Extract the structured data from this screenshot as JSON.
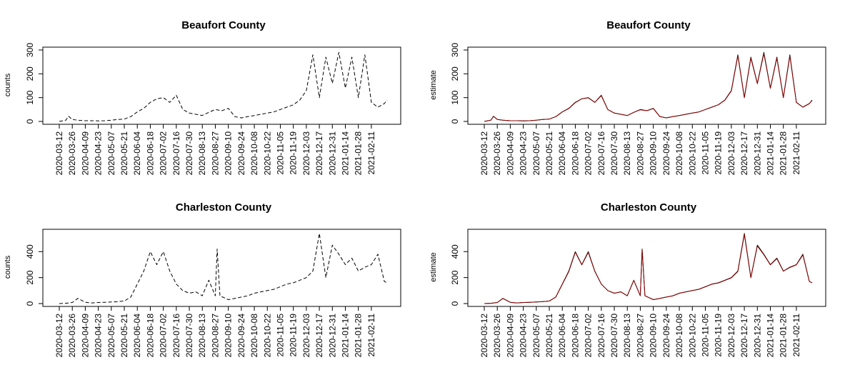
{
  "chart_data": [
    {
      "type": "line",
      "title": "Beaufort County",
      "xlabel": "",
      "ylabel": "counts",
      "ylim": [
        0,
        300
      ],
      "yticks": [
        0,
        100,
        200,
        300
      ],
      "xticks": [
        "2020-03-12",
        "2020-03-26",
        "2020-04-09",
        "2020-04-23",
        "2020-05-07",
        "2020-05-21",
        "2020-06-04",
        "2020-06-18",
        "2020-07-02",
        "2020-07-16",
        "2020-07-30",
        "2020-08-13",
        "2020-08-27",
        "2020-09-10",
        "2020-09-24",
        "2020-10-08",
        "2020-10-22",
        "2020-11-05",
        "2020-11-19",
        "2020-12-03",
        "2020-12-17",
        "2020-12-31",
        "2021-01-14",
        "2021-01-28",
        "2021-02-11"
      ],
      "series": [
        {
          "name": "counts",
          "color": "#000000",
          "dash": "dashed",
          "x": [
            0,
            7,
            10,
            14,
            20,
            28,
            35,
            42,
            49,
            56,
            63,
            70,
            77,
            84,
            91,
            98,
            105,
            112,
            119,
            126,
            133,
            140,
            147,
            154,
            161,
            168,
            175,
            182,
            189,
            196,
            203,
            210,
            217,
            224,
            231,
            238,
            245,
            252,
            259,
            266,
            273,
            280,
            287,
            294,
            301,
            308,
            315,
            322,
            329,
            336,
            343,
            350,
            353
          ],
          "y": [
            0,
            5,
            22,
            8,
            5,
            3,
            3,
            2,
            3,
            5,
            8,
            10,
            20,
            40,
            55,
            80,
            95,
            100,
            80,
            110,
            50,
            35,
            30,
            25,
            38,
            50,
            45,
            55,
            20,
            15,
            20,
            25,
            30,
            35,
            40,
            50,
            60,
            70,
            90,
            130,
            280,
            100,
            270,
            160,
            290,
            140,
            270,
            100,
            280,
            80,
            60,
            75,
            90
          ]
        }
      ]
    },
    {
      "type": "line",
      "title": "Beaufort County",
      "xlabel": "",
      "ylabel": "estimate",
      "ylim": [
        0,
        300
      ],
      "yticks": [
        0,
        100,
        200,
        300
      ],
      "xticks": [
        "2020-03-12",
        "2020-03-26",
        "2020-04-09",
        "2020-04-23",
        "2020-05-07",
        "2020-05-21",
        "2020-06-04",
        "2020-06-18",
        "2020-07-02",
        "2020-07-16",
        "2020-07-30",
        "2020-08-13",
        "2020-08-27",
        "2020-09-10",
        "2020-09-24",
        "2020-10-08",
        "2020-10-22",
        "2020-11-05",
        "2020-11-19",
        "2020-12-03",
        "2020-12-17",
        "2020-12-31",
        "2021-01-14",
        "2021-01-28",
        "2021-02-11"
      ],
      "series": [
        {
          "name": "counts",
          "color": "#000000",
          "dash": "solid",
          "x": [
            0,
            7,
            10,
            14,
            20,
            28,
            35,
            42,
            49,
            56,
            63,
            70,
            77,
            84,
            91,
            98,
            105,
            112,
            119,
            126,
            133,
            140,
            147,
            154,
            161,
            168,
            175,
            182,
            189,
            196,
            203,
            210,
            217,
            224,
            231,
            238,
            245,
            252,
            259,
            266,
            273,
            280,
            287,
            294,
            301,
            308,
            315,
            322,
            329,
            336,
            343,
            350,
            353
          ],
          "y": [
            0,
            5,
            22,
            8,
            5,
            3,
            3,
            2,
            3,
            5,
            8,
            10,
            20,
            40,
            55,
            80,
            95,
            100,
            80,
            110,
            50,
            35,
            30,
            25,
            38,
            50,
            45,
            55,
            20,
            15,
            20,
            25,
            30,
            35,
            40,
            50,
            60,
            70,
            90,
            130,
            280,
            100,
            270,
            160,
            290,
            140,
            270,
            100,
            280,
            80,
            60,
            75,
            90
          ]
        },
        {
          "name": "estimate",
          "color": "#8b0000",
          "dash": "solid",
          "x": [
            0,
            7,
            10,
            14,
            20,
            28,
            35,
            42,
            49,
            56,
            63,
            70,
            77,
            84,
            91,
            98,
            105,
            112,
            119,
            126,
            133,
            140,
            147,
            154,
            161,
            168,
            175,
            182,
            189,
            196,
            203,
            210,
            217,
            224,
            231,
            238,
            245,
            252,
            259,
            266,
            273,
            280,
            287,
            294,
            301,
            308,
            315,
            322,
            329,
            336,
            343,
            350,
            353
          ],
          "y": [
            0,
            5,
            21,
            8,
            5,
            3,
            3,
            2,
            3,
            5,
            8,
            10,
            20,
            40,
            54,
            79,
            95,
            99,
            80,
            108,
            50,
            35,
            30,
            25,
            38,
            49,
            45,
            54,
            20,
            15,
            20,
            25,
            30,
            35,
            40,
            50,
            60,
            70,
            89,
            128,
            276,
            100,
            266,
            158,
            285,
            139,
            266,
            100,
            275,
            80,
            60,
            75,
            88
          ]
        }
      ]
    },
    {
      "type": "line",
      "title": "Charleston County",
      "xlabel": "",
      "ylabel": "counts",
      "ylim": [
        0,
        550
      ],
      "yticks": [
        0,
        200,
        400
      ],
      "xticks": [
        "2020-03-12",
        "2020-03-26",
        "2020-04-09",
        "2020-04-23",
        "2020-05-07",
        "2020-05-21",
        "2020-06-04",
        "2020-06-18",
        "2020-07-02",
        "2020-07-16",
        "2020-07-30",
        "2020-08-13",
        "2020-08-27",
        "2020-09-10",
        "2020-09-24",
        "2020-10-08",
        "2020-10-22",
        "2020-11-05",
        "2020-11-19",
        "2020-12-03",
        "2020-12-17",
        "2020-12-31",
        "2021-01-14",
        "2021-01-28",
        "2021-02-11"
      ],
      "series": [
        {
          "name": "counts",
          "color": "#000000",
          "dash": "dashed",
          "x": [
            0,
            7,
            14,
            20,
            28,
            35,
            42,
            49,
            56,
            63,
            70,
            77,
            84,
            91,
            98,
            105,
            112,
            119,
            126,
            133,
            140,
            147,
            154,
            161,
            168,
            170,
            173,
            182,
            189,
            196,
            203,
            210,
            217,
            224,
            231,
            238,
            245,
            252,
            259,
            266,
            273,
            280,
            287,
            294,
            301,
            308,
            315,
            322,
            329,
            336,
            343,
            350,
            353
          ],
          "y": [
            0,
            2,
            8,
            40,
            10,
            5,
            8,
            10,
            12,
            15,
            20,
            50,
            150,
            250,
            400,
            300,
            400,
            250,
            150,
            100,
            80,
            90,
            60,
            180,
            60,
            420,
            60,
            30,
            40,
            50,
            60,
            80,
            90,
            100,
            110,
            130,
            150,
            160,
            180,
            200,
            250,
            540,
            200,
            450,
            380,
            300,
            350,
            250,
            280,
            300,
            380,
            170,
            160
          ]
        }
      ]
    },
    {
      "type": "line",
      "title": "Charleston County",
      "xlabel": "",
      "ylabel": "estimate",
      "ylim": [
        0,
        550
      ],
      "yticks": [
        0,
        200,
        400
      ],
      "xticks": [
        "2020-03-12",
        "2020-03-26",
        "2020-04-09",
        "2020-04-23",
        "2020-05-07",
        "2020-05-21",
        "2020-06-04",
        "2020-06-18",
        "2020-07-02",
        "2020-07-16",
        "2020-07-30",
        "2020-08-13",
        "2020-08-27",
        "2020-09-10",
        "2020-09-24",
        "2020-10-08",
        "2020-10-22",
        "2020-11-05",
        "2020-11-19",
        "2020-12-03",
        "2020-12-17",
        "2020-12-31",
        "2021-01-14",
        "2021-01-28",
        "2021-02-11"
      ],
      "series": [
        {
          "name": "counts",
          "color": "#000000",
          "dash": "solid",
          "x": [
            0,
            7,
            14,
            20,
            28,
            35,
            42,
            49,
            56,
            63,
            70,
            77,
            84,
            91,
            98,
            105,
            112,
            119,
            126,
            133,
            140,
            147,
            154,
            161,
            168,
            170,
            173,
            182,
            189,
            196,
            203,
            210,
            217,
            224,
            231,
            238,
            245,
            252,
            259,
            266,
            273,
            280,
            287,
            294,
            301,
            308,
            315,
            322,
            329,
            336,
            343,
            350,
            353
          ],
          "y": [
            0,
            2,
            8,
            40,
            10,
            5,
            8,
            10,
            12,
            15,
            20,
            50,
            150,
            250,
            400,
            300,
            400,
            250,
            150,
            100,
            80,
            90,
            60,
            180,
            60,
            420,
            60,
            30,
            40,
            50,
            60,
            80,
            90,
            100,
            110,
            130,
            150,
            160,
            180,
            200,
            250,
            540,
            200,
            450,
            380,
            300,
            350,
            250,
            280,
            300,
            380,
            170,
            160
          ]
        },
        {
          "name": "estimate",
          "color": "#8b0000",
          "dash": "solid",
          "x": [
            0,
            7,
            14,
            20,
            28,
            35,
            42,
            49,
            56,
            63,
            70,
            77,
            84,
            91,
            98,
            105,
            112,
            119,
            126,
            133,
            140,
            147,
            154,
            161,
            168,
            170,
            173,
            182,
            189,
            196,
            203,
            210,
            217,
            224,
            231,
            238,
            245,
            252,
            259,
            266,
            273,
            280,
            287,
            294,
            301,
            308,
            315,
            322,
            329,
            336,
            343,
            350,
            353
          ],
          "y": [
            0,
            2,
            8,
            39,
            10,
            5,
            8,
            10,
            12,
            15,
            20,
            50,
            148,
            246,
            395,
            298,
            394,
            248,
            150,
            100,
            80,
            90,
            60,
            178,
            60,
            414,
            60,
            30,
            40,
            50,
            60,
            80,
            90,
            100,
            110,
            129,
            149,
            159,
            178,
            198,
            247,
            532,
            199,
            444,
            376,
            298,
            346,
            249,
            278,
            298,
            375,
            170,
            160
          ]
        }
      ]
    }
  ]
}
